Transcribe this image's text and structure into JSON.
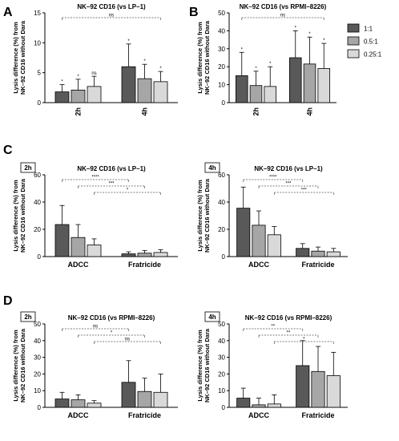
{
  "panel_labels": [
    "A",
    "B",
    "C",
    "D"
  ],
  "legend": [
    {
      "label": "1:1",
      "color": "#595959"
    },
    {
      "label": "0.5:1",
      "color": "#a6a6a6"
    },
    {
      "label": "0.25:1",
      "color": "#d9d9d9"
    }
  ],
  "chart_data": [
    {
      "type": "bar",
      "panel": "A",
      "tag": "",
      "title": "NK–92 CD16 (vs LP–1)",
      "ylabel": [
        "Lysis difference (%) from",
        "NK–92 CD16 without Dara"
      ],
      "ylim": [
        0,
        15
      ],
      "yticks": [
        0,
        5,
        10,
        15
      ],
      "categories": [
        "2h",
        "4h"
      ],
      "xlabel_rotated": true,
      "series": [
        {
          "name": "1:1",
          "values": [
            1.8,
            6.0
          ],
          "errors": [
            1.2,
            3.8
          ]
        },
        {
          "name": "0.5:1",
          "values": [
            2.1,
            4.0
          ],
          "errors": [
            1.8,
            2.4
          ]
        },
        {
          "name": "0.25:1",
          "values": [
            2.7,
            3.5
          ],
          "errors": [
            1.7,
            1.7
          ]
        }
      ],
      "bar_labels": [
        [
          "*",
          "*",
          "ns"
        ],
        [
          "*",
          "*",
          "*"
        ]
      ],
      "brackets": [
        {
          "label": "ns",
          "level": 1,
          "from": [
            0,
            0
          ],
          "to": [
            1,
            2
          ]
        }
      ]
    },
    {
      "type": "bar",
      "panel": "B",
      "tag": "",
      "title": "NK–92 CD16 (vs RPMI–8226)",
      "ylabel": [
        "Lysis difference (%) from",
        "NK–92 CD16 without Dara"
      ],
      "ylim": [
        0,
        50
      ],
      "yticks": [
        0,
        10,
        20,
        30,
        40,
        50
      ],
      "categories": [
        "2h",
        "4h"
      ],
      "xlabel_rotated": true,
      "series": [
        {
          "name": "1:1",
          "values": [
            15,
            25
          ],
          "errors": [
            13,
            15
          ]
        },
        {
          "name": "0.5:1",
          "values": [
            9.5,
            21.5
          ],
          "errors": [
            8,
            15
          ]
        },
        {
          "name": "0.25:1",
          "values": [
            9,
            19
          ],
          "errors": [
            11,
            14
          ]
        }
      ],
      "bar_labels": [
        [
          "*",
          "*",
          "*"
        ],
        [
          "*",
          "*",
          "*"
        ]
      ],
      "brackets": [
        {
          "label": "ns",
          "level": 1,
          "from": [
            0,
            0
          ],
          "to": [
            1,
            2
          ]
        }
      ]
    },
    {
      "type": "bar",
      "panel": "C",
      "tag": "2h",
      "title": "NK–92 CD16 (vs LP–1)",
      "ylabel": [
        "Lysis difference (%) from",
        "NK–92 CD16 without Dara"
      ],
      "ylim": [
        0,
        60
      ],
      "yticks": [
        0,
        20,
        40,
        60
      ],
      "categories": [
        "ADCC",
        "Fratricide"
      ],
      "xlabel_rotated": false,
      "series": [
        {
          "name": "1:1",
          "values": [
            23.5,
            2.0
          ],
          "errors": [
            14,
            1.5
          ]
        },
        {
          "name": "0.5:1",
          "values": [
            14,
            2.5
          ],
          "errors": [
            9.5,
            2
          ]
        },
        {
          "name": "0.25:1",
          "values": [
            8.5,
            3.0
          ],
          "errors": [
            4.5,
            2
          ]
        }
      ],
      "bar_labels": [],
      "brackets": [
        {
          "label": "****",
          "level": 1,
          "from": [
            0,
            0
          ],
          "to": [
            1,
            0
          ]
        },
        {
          "label": "***",
          "level": 2,
          "from": [
            0,
            1
          ],
          "to": [
            1,
            1
          ]
        },
        {
          "label": "*",
          "level": 3,
          "from": [
            0,
            2
          ],
          "to": [
            1,
            2
          ]
        }
      ]
    },
    {
      "type": "bar",
      "panel": "C",
      "tag": "4h",
      "title": "NK–92 CD16 (vs LP–1)",
      "ylabel": [
        "Lysis difference (%) from",
        "NK–92 CD16 without Dara"
      ],
      "ylim": [
        0,
        60
      ],
      "yticks": [
        0,
        20,
        40,
        60
      ],
      "categories": [
        "ADCC",
        "Fratricide"
      ],
      "xlabel_rotated": false,
      "series": [
        {
          "name": "1:1",
          "values": [
            35.5,
            6.0
          ],
          "errors": [
            15.5,
            3.5
          ]
        },
        {
          "name": "0.5:1",
          "values": [
            23,
            4.0
          ],
          "errors": [
            10.5,
            3
          ]
        },
        {
          "name": "0.25:1",
          "values": [
            16,
            3.5
          ],
          "errors": [
            6,
            2.5
          ]
        }
      ],
      "bar_labels": [],
      "brackets": [
        {
          "label": "****",
          "level": 1,
          "from": [
            0,
            0
          ],
          "to": [
            1,
            0
          ]
        },
        {
          "label": "***",
          "level": 2,
          "from": [
            0,
            1
          ],
          "to": [
            1,
            1
          ]
        },
        {
          "label": "***",
          "level": 3,
          "from": [
            0,
            2
          ],
          "to": [
            1,
            2
          ]
        }
      ]
    },
    {
      "type": "bar",
      "panel": "D",
      "tag": "2h",
      "title": "NK–92 CD16 (vs RPMI–8226)",
      "ylabel": [
        "Lysis difference (%) from",
        "NK–92 CD16 without Dara"
      ],
      "ylim": [
        0,
        50
      ],
      "yticks": [
        0,
        10,
        20,
        30,
        40,
        50
      ],
      "categories": [
        "ADCC",
        "Fratricide"
      ],
      "xlabel_rotated": false,
      "series": [
        {
          "name": "1:1",
          "values": [
            5,
            15
          ],
          "errors": [
            4,
            13
          ]
        },
        {
          "name": "0.5:1",
          "values": [
            4.5,
            9.5
          ],
          "errors": [
            3,
            8
          ]
        },
        {
          "name": "0.25:1",
          "values": [
            2.5,
            9
          ],
          "errors": [
            1.5,
            11
          ]
        }
      ],
      "bar_labels": [],
      "brackets": [
        {
          "label": "ns",
          "level": 1,
          "from": [
            0,
            0
          ],
          "to": [
            1,
            0
          ]
        },
        {
          "label": "*",
          "level": 2,
          "from": [
            0,
            1
          ],
          "to": [
            1,
            1
          ]
        },
        {
          "label": "ns",
          "level": 3,
          "from": [
            0,
            2
          ],
          "to": [
            1,
            2
          ]
        }
      ]
    },
    {
      "type": "bar",
      "panel": "D",
      "tag": "4h",
      "title": "NK–92 CD16 (vs RPMI–8226)",
      "ylabel": [
        "Lysis difference (%) from",
        "NK–92 CD16 without Dara"
      ],
      "ylim": [
        0,
        50
      ],
      "yticks": [
        0,
        10,
        20,
        30,
        40,
        50
      ],
      "categories": [
        "ADCC",
        "Fratricide"
      ],
      "xlabel_rotated": false,
      "series": [
        {
          "name": "1:1",
          "values": [
            5.5,
            25
          ],
          "errors": [
            6,
            15
          ]
        },
        {
          "name": "0.5:1",
          "values": [
            1.5,
            21.5
          ],
          "errors": [
            4,
            15
          ]
        },
        {
          "name": "0.25:1",
          "values": [
            2,
            19
          ],
          "errors": [
            5.5,
            14
          ]
        }
      ],
      "bar_labels": [],
      "brackets": [
        {
          "label": "**",
          "level": 1,
          "from": [
            0,
            0
          ],
          "to": [
            1,
            0
          ]
        },
        {
          "label": "**",
          "level": 2,
          "from": [
            0,
            1
          ],
          "to": [
            1,
            1
          ]
        },
        {
          "label": "*",
          "level": 3,
          "from": [
            0,
            2
          ],
          "to": [
            1,
            2
          ]
        }
      ]
    }
  ]
}
